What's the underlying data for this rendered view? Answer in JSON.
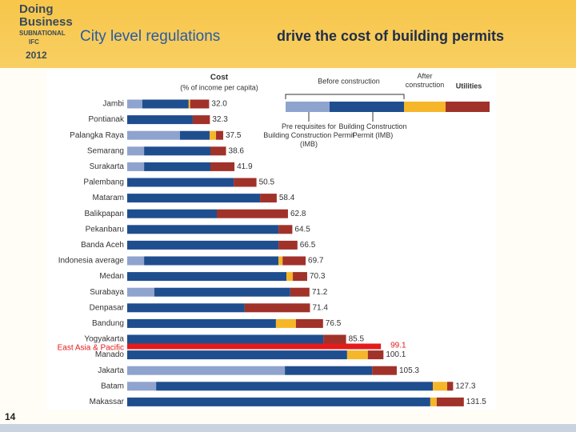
{
  "logo": {
    "line1": "Doing",
    "line2": "Business",
    "line3": "SUBNATIONAL",
    "line4": "IFC",
    "year": "2012"
  },
  "title_part1": "City level regulations",
  "title_part2": "drive the cost of building permits",
  "page_number": "14",
  "chart_data": {
    "type": "stacked-barh",
    "legend_title": "Cost",
    "legend_subtitle": "(% of income per capita)",
    "legend_group": "Before construction",
    "categories": [
      "Jambi",
      "Pontianak",
      "Palangka Raya",
      "Semarang",
      "Surakarta",
      "Palembang",
      "Mataram",
      "Balikpapan",
      "Pekanbaru",
      "Banda Aceh",
      "Indonesia average",
      "Medan",
      "Surabaya",
      "Denpasar",
      "Bandung",
      "Yogyakarta",
      "Manado",
      "Jakarta",
      "Batam",
      "Makassar"
    ],
    "series": [
      {
        "name": "Pre requisites for Building Construction Permit (IMB)",
        "color": "#8fa3cf",
        "values": [
          5.9,
          0,
          20.6,
          6.6,
          6.6,
          0,
          0,
          0,
          0,
          0,
          6.6,
          0,
          10.6,
          0,
          0,
          0,
          0,
          61.6,
          11.3,
          0
        ]
      },
      {
        "name": "Building Construction Permit (IMB)",
        "color": "#1f4e8f",
        "values": [
          18.1,
          25.6,
          11.6,
          25.9,
          25.9,
          41.6,
          51.9,
          35.0,
          59.1,
          59.1,
          52.5,
          62.2,
          53.1,
          45.9,
          58.1,
          76.6,
          85.9,
          34.1,
          108.1,
          118.4
        ]
      },
      {
        "name": "After construction",
        "color": "#f5b62a",
        "values": [
          0.6,
          0,
          2.5,
          0,
          0,
          0,
          0,
          0,
          0,
          0,
          1.6,
          2.5,
          0,
          0,
          7.8,
          0,
          8.1,
          0,
          5.6,
          2.5
        ]
      },
      {
        "name": "Utilities",
        "color": "#a0322a",
        "values": [
          7.4,
          6.7,
          2.8,
          6.1,
          9.4,
          8.9,
          6.5,
          27.8,
          5.4,
          7.4,
          9.0,
          5.6,
          7.5,
          25.5,
          10.6,
          8.9,
          6.1,
          9.6,
          2.3,
          10.6
        ]
      }
    ],
    "value_labels": [
      "32.0",
      "32.3",
      "37.5",
      "38.6",
      "41.9",
      "50.5",
      "58.4",
      "62.8",
      "64.5",
      "66.5",
      "69.7",
      "70.3",
      "71.2",
      "71.4",
      "76.5",
      "85.5",
      "100.1",
      "105.3",
      "127.3",
      "131.5"
    ],
    "reference": {
      "name": "East Asia & Pacific",
      "value": 99.1,
      "value_label": "99.1",
      "color": "#e31b1b"
    }
  }
}
